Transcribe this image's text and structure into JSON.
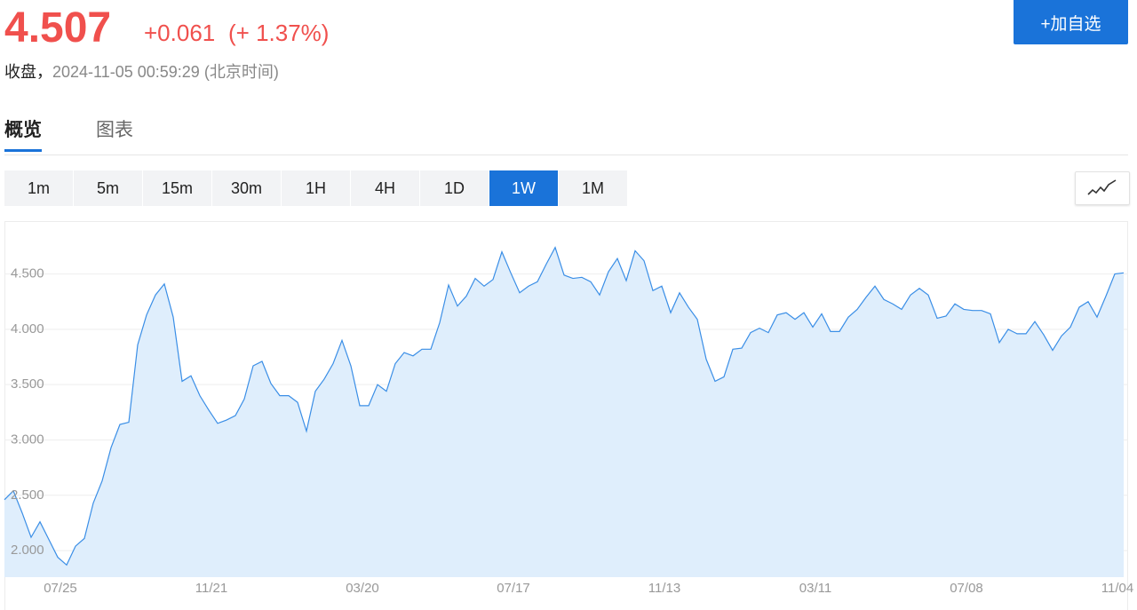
{
  "header": {
    "price": "4.507",
    "change": "+0.061",
    "change_pct": "(+ 1.37%)",
    "status": "收盘，",
    "timestamp": "2024-11-05 00:59:29",
    "timezone": "(北京时间)",
    "watch_button": "+加自选"
  },
  "tabs": [
    "概览",
    "图表"
  ],
  "active_tab": 0,
  "periods": [
    "1m",
    "5m",
    "15m",
    "30m",
    "1H",
    "4H",
    "1D",
    "1W",
    "1M"
  ],
  "active_period": 7,
  "chart_data": {
    "type": "area",
    "color": "#3a8ee6",
    "fill_color": "#dfeefc",
    "grid": true,
    "categories": [
      null,
      null,
      null,
      null,
      null,
      null,
      "07/25",
      null,
      null,
      null,
      null,
      null,
      null,
      null,
      null,
      null,
      null,
      null,
      null,
      null,
      null,
      null,
      null,
      "11/21",
      null,
      null,
      null,
      null,
      null,
      null,
      null,
      null,
      null,
      null,
      null,
      null,
      null,
      null,
      null,
      null,
      "03/20",
      null,
      null,
      null,
      null,
      null,
      null,
      null,
      null,
      null,
      null,
      null,
      null,
      null,
      null,
      null,
      null,
      "07/17",
      null,
      null,
      null,
      null,
      null,
      null,
      null,
      null,
      null,
      null,
      null,
      null,
      null,
      null,
      null,
      null,
      "11/13",
      null,
      null,
      null,
      null,
      null,
      null,
      null,
      null,
      null,
      null,
      null,
      null,
      null,
      null,
      null,
      null,
      "03/11",
      null,
      null,
      null,
      null,
      null,
      null,
      null,
      null,
      null,
      null,
      null,
      null,
      null,
      null,
      null,
      null,
      "07/08",
      null,
      null,
      null,
      null,
      null,
      null,
      null,
      null,
      null,
      null,
      null,
      null,
      null,
      null,
      null,
      null,
      "11/04",
      null
    ],
    "values": [
      2.46,
      2.54,
      2.34,
      2.12,
      2.26,
      2.1,
      1.94,
      1.87,
      2.04,
      2.11,
      2.43,
      2.63,
      2.93,
      3.14,
      3.16,
      3.86,
      4.13,
      4.31,
      4.41,
      4.11,
      3.53,
      3.58,
      3.4,
      3.27,
      3.15,
      3.18,
      3.22,
      3.37,
      3.67,
      3.71,
      3.51,
      3.4,
      3.4,
      3.34,
      3.08,
      3.44,
      3.55,
      3.69,
      3.9,
      3.67,
      3.31,
      3.31,
      3.5,
      3.44,
      3.69,
      3.79,
      3.76,
      3.82,
      3.82,
      4.06,
      4.4,
      4.21,
      4.3,
      4.46,
      4.39,
      4.45,
      4.7,
      4.51,
      4.33,
      4.39,
      4.43,
      4.59,
      4.74,
      4.49,
      4.46,
      4.47,
      4.43,
      4.31,
      4.52,
      4.64,
      4.44,
      4.71,
      4.62,
      4.35,
      4.39,
      4.15,
      4.33,
      4.2,
      4.09,
      3.73,
      3.53,
      3.57,
      3.82,
      3.83,
      3.97,
      4.01,
      3.97,
      4.13,
      4.15,
      4.09,
      4.15,
      4.02,
      4.14,
      3.98,
      3.98,
      4.11,
      4.18,
      4.29,
      4.39,
      4.27,
      4.23,
      4.18,
      4.31,
      4.37,
      4.31,
      4.1,
      4.12,
      4.23,
      4.18,
      4.17,
      4.17,
      4.14,
      3.88,
      4.0,
      3.96,
      3.96,
      4.07,
      3.95,
      3.81,
      3.94,
      4.02,
      4.2,
      4.25,
      4.11,
      4.3,
      4.5,
      4.51
    ],
    "ylim": [
      1.76,
      4.97
    ],
    "yticks": [
      {
        "value": 2,
        "label": "2.000"
      },
      {
        "value": 2.5,
        "label": "2.500"
      },
      {
        "value": 3,
        "label": "3.000"
      },
      {
        "value": 3.5,
        "label": "3.500"
      },
      {
        "value": 4,
        "label": "4.000"
      },
      {
        "value": 4.5,
        "label": "4.500"
      }
    ]
  }
}
